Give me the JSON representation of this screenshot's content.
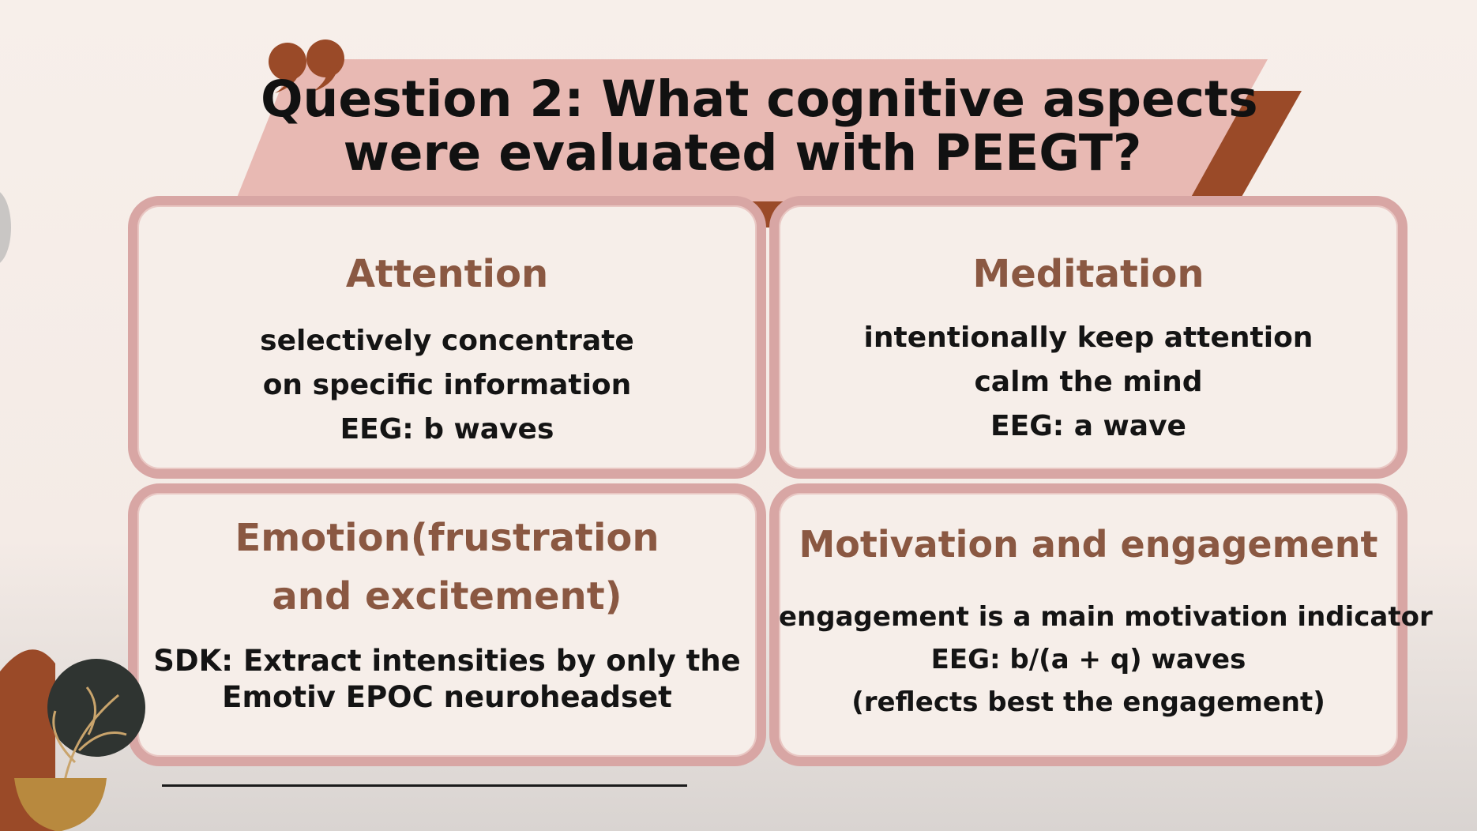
{
  "slide": {
    "title_lines": [
      "Question 2: What cognitive aspects",
      "were evaluated with PEEGT?"
    ],
    "colors": {
      "banner_pink": "#e8b9b3",
      "banner_brown": "#9a4a28",
      "card_border": "#d8a6a4",
      "card_title": "#8a5842",
      "quote_mark": "#9a4a28"
    }
  },
  "cards": [
    {
      "title_lines": [
        "Attention"
      ],
      "body_lines": [
        "selectively concentrate",
        "on specific information",
        "EEG:  b waves"
      ]
    },
    {
      "title_lines": [
        "Meditation"
      ],
      "body_lines": [
        "intentionally keep attention",
        "calm the mind",
        "EEG: a wave"
      ]
    },
    {
      "title_lines": [
        "Emotion(frustration",
        "and excitement)"
      ],
      "body_lines": [
        "SDK:  Extract intensities by only the",
        "Emotiv EPOC neuroheadset"
      ]
    },
    {
      "title_lines": [
        "Motivation and engagement"
      ],
      "body_lines": [
        "engagement is a main motivation indicator",
        "EEG:  b/(a + q) waves",
        "(reflects best the engagement)"
      ]
    }
  ],
  "decorations": [
    "quote-mark-icon",
    "plant-pot-icon",
    "leaf-icon"
  ]
}
